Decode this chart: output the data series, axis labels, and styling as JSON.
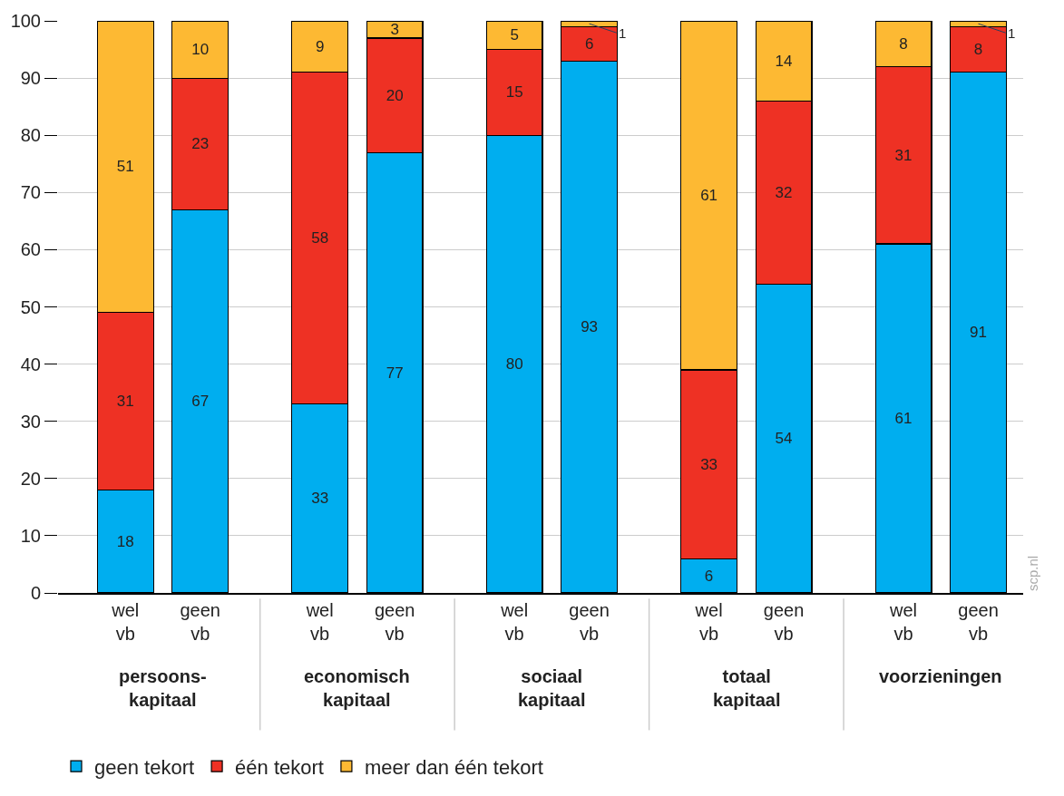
{
  "chart_data": {
    "type": "bar",
    "stacked": true,
    "categories": [
      "wel vb",
      "geen vb",
      "wel vb",
      "geen vb",
      "wel vb",
      "geen vb",
      "wel vb",
      "geen vb",
      "wel vb",
      "geen vb"
    ],
    "series": [
      {
        "name": "geen tekort",
        "color": "#00aeef",
        "values": [
          18,
          67,
          33,
          77,
          80,
          93,
          6,
          54,
          61,
          91
        ]
      },
      {
        "name": "één tekort",
        "color": "#ee3124",
        "values": [
          31,
          23,
          58,
          20,
          15,
          6,
          33,
          32,
          31,
          8
        ]
      },
      {
        "name": "meer dan één tekort",
        "color": "#fdb933",
        "values": [
          51,
          10,
          9,
          3,
          5,
          1,
          61,
          14,
          8,
          1
        ]
      }
    ],
    "annotations": [
      "persoons-\nkapitaal",
      "economisch\nkapitaal",
      "sociaal\nkapitaal",
      "totaal\nkapitaal",
      "voorzieningen",
      "scp.nl"
    ],
    "ylim": [
      0,
      100
    ],
    "yticks": [
      0,
      10,
      20,
      30,
      40,
      50,
      60,
      70,
      80,
      90,
      100
    ],
    "grid": "y",
    "legend": "bottom left",
    "data_labels": true
  }
}
